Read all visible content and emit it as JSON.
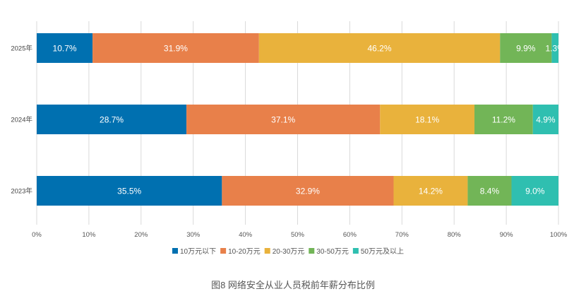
{
  "chart_data": {
    "type": "bar",
    "orientation": "horizontal",
    "stacked": true,
    "title": "图8 网络安全从业人员税前年薪分布比例",
    "categories": [
      "2025年",
      "2024年",
      "2023年"
    ],
    "series": [
      {
        "name": "10万元以下",
        "color": "#0070b0",
        "values": [
          10.7,
          28.7,
          35.5
        ],
        "labels": [
          "10.7%",
          "28.7%",
          "35.5%"
        ]
      },
      {
        "name": "10-20万元",
        "color": "#e8804a",
        "values": [
          31.9,
          37.1,
          32.9
        ],
        "labels": [
          "31.9%",
          "37.1%",
          "32.9%"
        ]
      },
      {
        "name": "20-30万元",
        "color": "#e9b23c",
        "values": [
          46.2,
          18.1,
          14.2
        ],
        "labels": [
          "46.2%",
          "18.1%",
          "14.2%"
        ]
      },
      {
        "name": "30-50万元",
        "color": "#72b557",
        "values": [
          9.9,
          11.2,
          8.4
        ],
        "labels": [
          "9.9%",
          "11.2%",
          "8.4%"
        ]
      },
      {
        "name": "50万元及以上",
        "color": "#2fbfb0",
        "values": [
          1.3,
          4.9,
          9.0
        ],
        "labels": [
          "1.3%",
          "4.9%",
          "9.0%"
        ]
      }
    ],
    "xlim": [
      0,
      100
    ],
    "xticks": [
      "0%",
      "10%",
      "20%",
      "30%",
      "40%",
      "50%",
      "60%",
      "70%",
      "80%",
      "90%",
      "100%"
    ],
    "grid": true,
    "legend_position": "bottom"
  }
}
